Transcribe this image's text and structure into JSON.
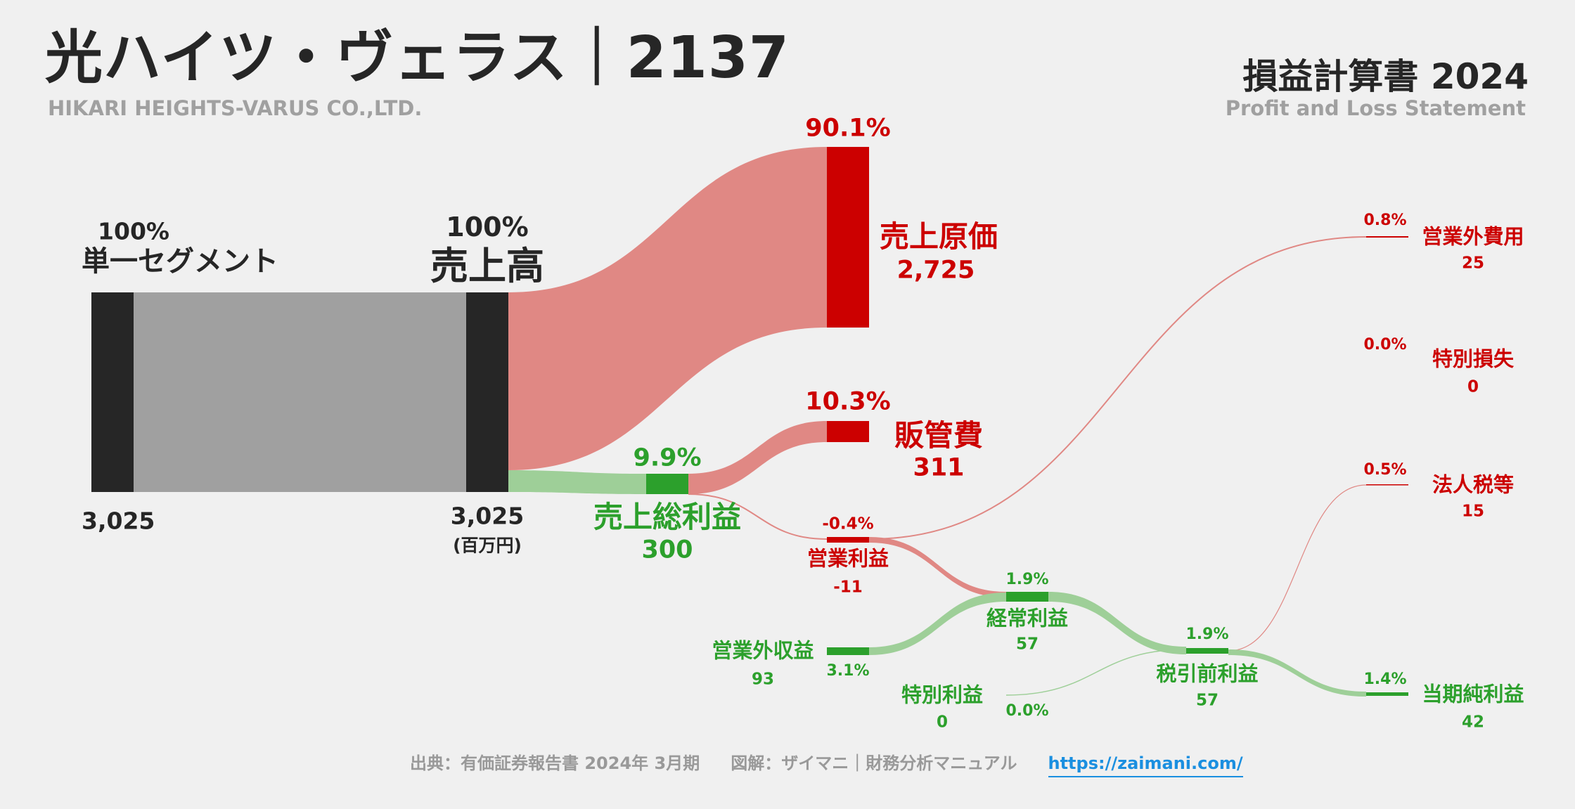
{
  "header": {
    "title": "光ハイツ・ヴェラス｜2137",
    "subtitle": "HIKARI HEIGHTS-VARUS CO.,LTD.",
    "report_title": "損益計算書 2024",
    "report_subtitle": "Profit and Loss Statement"
  },
  "chart_data": {
    "type": "sankey",
    "unit": "(百万円)",
    "colors": {
      "neutral": "#262626",
      "flow_neutral": "#a0a0a0",
      "cost": "#cc0000",
      "cost_flow": "#e08884",
      "profit": "#2ca02c",
      "profit_flow": "#9ecf98"
    },
    "nodes": {
      "segment": {
        "label": "単一セグメント",
        "pct": "100%",
        "value": "3,025"
      },
      "revenue": {
        "label": "売上高",
        "pct": "100%",
        "value": "3,025"
      },
      "cogs": {
        "label": "売上原価",
        "pct": "90.1%",
        "value": "2,725"
      },
      "sga": {
        "label": "販管費",
        "pct": "10.3%",
        "value": "311"
      },
      "gross": {
        "label": "売上総利益",
        "pct": "9.9%",
        "value": "300"
      },
      "op": {
        "label": "営業利益",
        "pct": "-0.4%",
        "value": "-11"
      },
      "nonop_exp": {
        "label": "営業外費用",
        "pct": "0.8%",
        "value": "25"
      },
      "special_loss": {
        "label": "特別損失",
        "pct": "0.0%",
        "value": "0"
      },
      "tax": {
        "label": "法人税等",
        "pct": "0.5%",
        "value": "15"
      },
      "ordinary": {
        "label": "経常利益",
        "pct": "1.9%",
        "value": "57"
      },
      "nonop_inc": {
        "label": "営業外収益",
        "pct": "3.1%",
        "value": "93"
      },
      "special_gain": {
        "label": "特別利益",
        "pct": "0.0%",
        "value": "0"
      },
      "pretax": {
        "label": "税引前利益",
        "pct": "1.9%",
        "value": "57"
      },
      "net": {
        "label": "当期純利益",
        "pct": "1.4%",
        "value": "42"
      }
    },
    "links": [
      {
        "from": "segment",
        "to": "revenue",
        "value": 3025
      },
      {
        "from": "revenue",
        "to": "cogs",
        "value": 2725
      },
      {
        "from": "revenue",
        "to": "gross",
        "value": 300
      },
      {
        "from": "gross",
        "to": "sga",
        "value": 311
      },
      {
        "from": "gross",
        "to": "op",
        "value": -11
      },
      {
        "from": "op",
        "to": "nonop_exp",
        "value": 25
      },
      {
        "from": "op",
        "to": "ordinary",
        "value": -11
      },
      {
        "from": "nonop_inc",
        "to": "ordinary",
        "value": 93
      },
      {
        "from": "ordinary",
        "to": "pretax",
        "value": 57
      },
      {
        "from": "special_gain",
        "to": "pretax",
        "value": 0
      },
      {
        "from": "pretax",
        "to": "tax",
        "value": 15
      },
      {
        "from": "pretax",
        "to": "net",
        "value": 42
      }
    ]
  },
  "footer": {
    "source": "出典：有価証券報告書 2024年 3月期",
    "credit": "図解：ザイマニ｜財務分析マニュアル",
    "link": "https://zaimani.com/"
  }
}
